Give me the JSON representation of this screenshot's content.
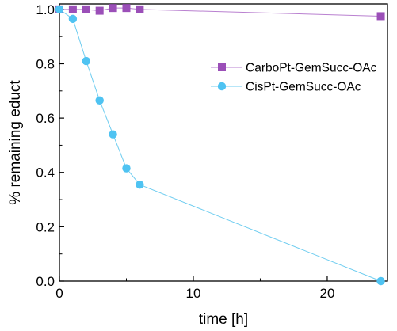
{
  "chart_data": {
    "type": "line",
    "title": "",
    "xlabel": "time [h]",
    "ylabel": "% remaining educt",
    "xlim": [
      0,
      24.5
    ],
    "ylim": [
      0,
      1.02
    ],
    "xticks": [
      0,
      10,
      20
    ],
    "yticks": [
      0.0,
      0.2,
      0.4,
      0.6,
      0.8,
      1.0
    ],
    "xtick_labels": [
      "0",
      "10",
      "20"
    ],
    "ytick_labels": [
      "0.0",
      "0.2",
      "0.4",
      "0.6",
      "0.8",
      "1.0"
    ],
    "grid": false,
    "legend_position": "right",
    "series": [
      {
        "name": "CarboPt-GemSucc-OAc",
        "marker": "square",
        "color": "#9b4fb8",
        "line_color": "#b980d0",
        "points": [
          {
            "x": 0,
            "y": 1.0
          },
          {
            "x": 1,
            "y": 1.0
          },
          {
            "x": 2,
            "y": 1.0
          },
          {
            "x": 3,
            "y": 0.995
          },
          {
            "x": 4,
            "y": 1.005
          },
          {
            "x": 5,
            "y": 1.005
          },
          {
            "x": 6,
            "y": 1.0
          },
          {
            "x": 24,
            "y": 0.975
          }
        ]
      },
      {
        "name": "CisPt-GemSucc-OAc",
        "marker": "circle",
        "color": "#4fc3f2",
        "line_color": "#6fcdf0",
        "points": [
          {
            "x": 0,
            "y": 1.0
          },
          {
            "x": 1,
            "y": 0.965
          },
          {
            "x": 2,
            "y": 0.81
          },
          {
            "x": 3,
            "y": 0.665
          },
          {
            "x": 4,
            "y": 0.54
          },
          {
            "x": 5,
            "y": 0.415
          },
          {
            "x": 6,
            "y": 0.355
          },
          {
            "x": 24,
            "y": 0.0
          }
        ]
      }
    ]
  }
}
